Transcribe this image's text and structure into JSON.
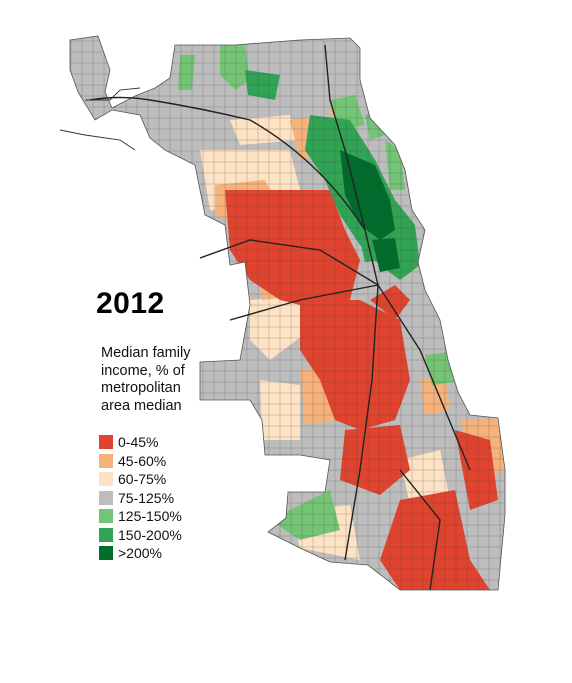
{
  "map": {
    "year": "2012",
    "legend": {
      "title_lines": [
        "Median family",
        "income, % of",
        "metropolitan",
        "area median"
      ],
      "items": [
        {
          "label": "0-45%",
          "color": "#e0442f"
        },
        {
          "label": "45-60%",
          "color": "#f5b27a"
        },
        {
          "label": "60-75%",
          "color": "#fde3c4"
        },
        {
          "label": "75-125%",
          "color": "#bdbdbd"
        },
        {
          "label": "125-150%",
          "color": "#74c476"
        },
        {
          "label": "150-200%",
          "color": "#31a354"
        },
        {
          "label": ">200%",
          "color": "#006d2c"
        }
      ]
    }
  }
}
